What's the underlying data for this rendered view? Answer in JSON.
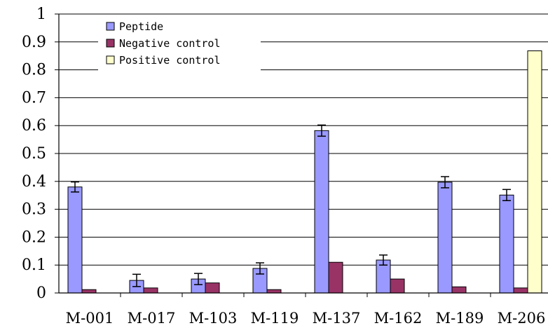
{
  "chart_data": {
    "type": "bar",
    "title": "",
    "xlabel": "",
    "ylabel": "",
    "categories": [
      "M-001",
      "M-017",
      "M-103",
      "M-119",
      "M-137",
      "M-162",
      "M-189",
      "M-206"
    ],
    "ylim": [
      0,
      1
    ],
    "yticks": [
      "0",
      "0.1",
      "0.2",
      "0.3",
      "0.4",
      "0.5",
      "0.6",
      "0.7",
      "0.8",
      "0.9",
      "1"
    ],
    "grid": true,
    "legend_placement": "top-left",
    "series": [
      {
        "name": "Peptide",
        "color": "#9999ff",
        "values": [
          0.38,
          0.045,
          0.05,
          0.088,
          0.582,
          0.118,
          0.397,
          0.351
        ],
        "errors": [
          0.018,
          0.022,
          0.02,
          0.02,
          0.02,
          0.018,
          0.02,
          0.02
        ]
      },
      {
        "name": "Negative control",
        "color": "#993366",
        "values": [
          0.012,
          0.018,
          0.036,
          0.012,
          0.11,
          0.05,
          0.022,
          0.018
        ]
      },
      {
        "name": "Positive control",
        "color": "#ffffcc",
        "values": [
          null,
          null,
          null,
          null,
          null,
          null,
          null,
          0.868
        ]
      }
    ]
  }
}
